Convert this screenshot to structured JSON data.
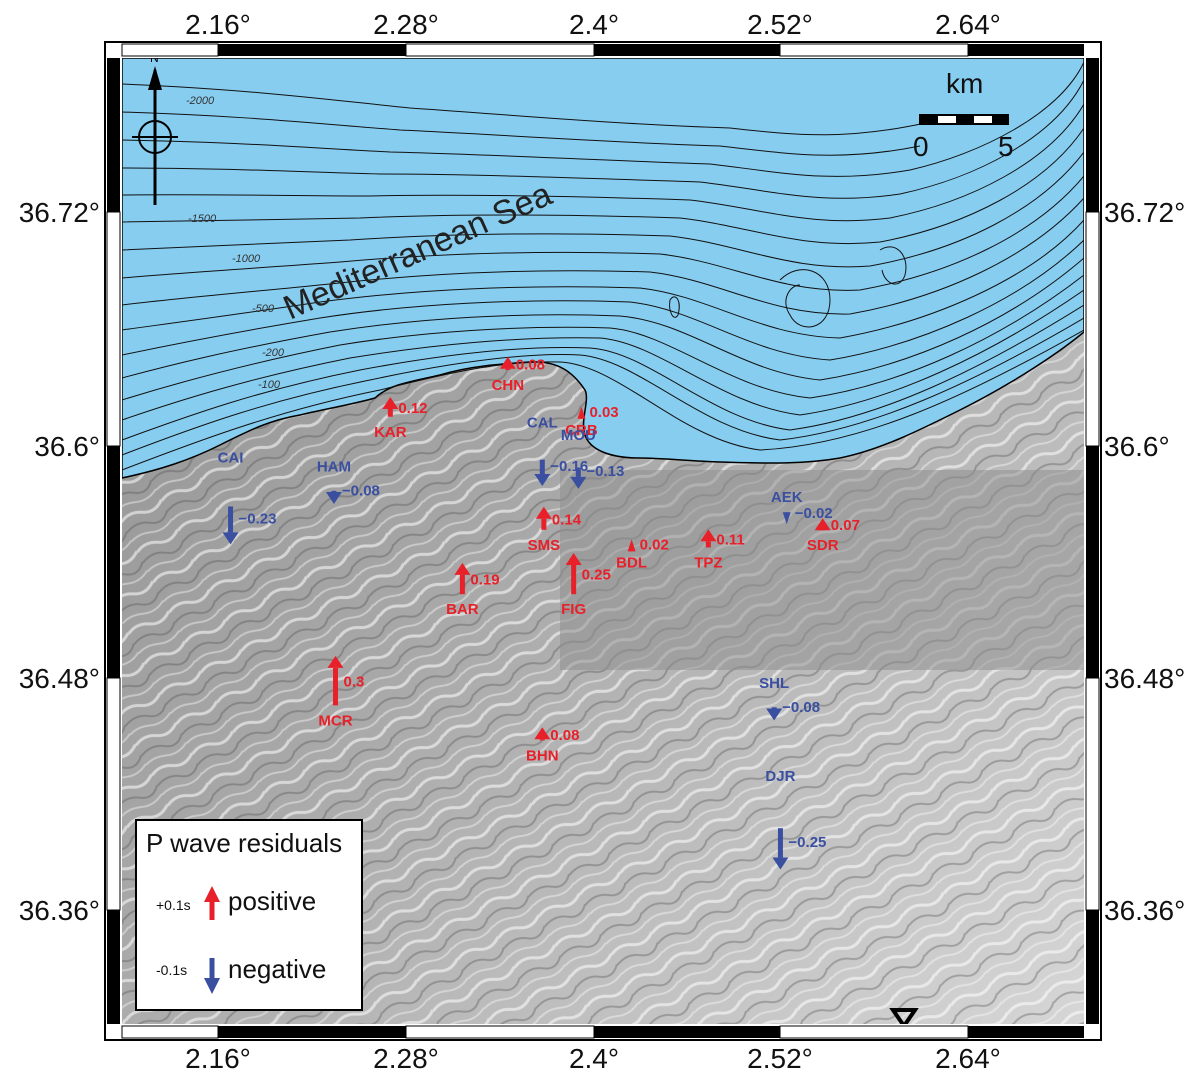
{
  "map": {
    "x_ticks": [
      "2.16°",
      "2.28°",
      "2.4°",
      "2.52°",
      "2.64°"
    ],
    "y_ticks": [
      "36.72°",
      "36.6°",
      "36.48°",
      "36.36°"
    ],
    "sea_label": "Mediterranean Sea",
    "depth_labels": [
      "-2000",
      "-1500",
      "-1000",
      "-500",
      "-200",
      "-100"
    ],
    "north_label": "N",
    "scale_unit": "km",
    "scale_min": "0",
    "scale_max": "5",
    "colors": {
      "sea": "#87cdf0",
      "positive": "#e8202a",
      "negative": "#3a4fa0",
      "land": "#9a9a9a"
    }
  },
  "stations": [
    {
      "code": "KAR",
      "value": "0.12",
      "sign": "positive",
      "lon": 2.27,
      "lat": 36.615
    },
    {
      "code": "CHN",
      "value": "0.08",
      "sign": "positive",
      "lon": 2.345,
      "lat": 36.639
    },
    {
      "code": "CRB",
      "value": "0.03",
      "sign": "positive",
      "lon": 2.392,
      "lat": 36.616
    },
    {
      "code": "CAL",
      "value": "−0.16",
      "sign": "negative",
      "lon": 2.367,
      "lat": 36.593
    },
    {
      "code": "SMS",
      "value": "0.14",
      "sign": "positive",
      "lon": 2.368,
      "lat": 36.557
    },
    {
      "code": "MOU",
      "value": "−0.13",
      "sign": "negative",
      "lon": 2.39,
      "lat": 36.589
    },
    {
      "code": "HAM",
      "value": "−0.08",
      "sign": "negative",
      "lon": 2.234,
      "lat": 36.577
    },
    {
      "code": "CAI",
      "value": "−0.23",
      "sign": "negative",
      "lon": 2.168,
      "lat": 36.569
    },
    {
      "code": "BAR",
      "value": "0.19",
      "sign": "positive",
      "lon": 2.316,
      "lat": 36.524
    },
    {
      "code": "FIG",
      "value": "0.25",
      "sign": "positive",
      "lon": 2.387,
      "lat": 36.524
    },
    {
      "code": "BDL",
      "value": "0.02",
      "sign": "positive",
      "lon": 2.424,
      "lat": 36.548
    },
    {
      "code": "TPZ",
      "value": "0.11",
      "sign": "positive",
      "lon": 2.473,
      "lat": 36.548
    },
    {
      "code": "AEK",
      "value": "−0.02",
      "sign": "negative",
      "lon": 2.523,
      "lat": 36.564
    },
    {
      "code": "SDR",
      "value": "0.07",
      "sign": "positive",
      "lon": 2.546,
      "lat": 36.557
    },
    {
      "code": "MCR",
      "value": "0.3",
      "sign": "positive",
      "lon": 2.235,
      "lat": 36.467
    },
    {
      "code": "BHN",
      "value": "0.08",
      "sign": "positive",
      "lon": 2.367,
      "lat": 36.449
    },
    {
      "code": "SHL",
      "value": "−0.08",
      "sign": "negative",
      "lon": 2.515,
      "lat": 36.466
    },
    {
      "code": "DJR",
      "value": "−0.25",
      "sign": "negative",
      "lon": 2.519,
      "lat": 36.404
    }
  ],
  "legend": {
    "title": "P wave residuals",
    "positive_scale": "+0.1s",
    "positive_label": "positive",
    "negative_scale": "-0.1s",
    "negative_label": "negative"
  }
}
